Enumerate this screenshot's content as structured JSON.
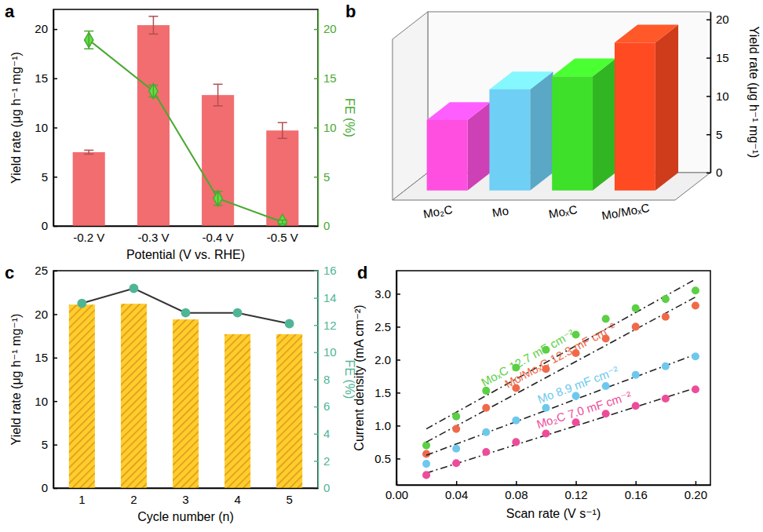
{
  "chart_data": [
    {
      "type": "bar",
      "title": "a",
      "categories": [
        "-0.2 V",
        "-0.3 V",
        "-0.4 V",
        "-0.5 V"
      ],
      "x_label": "Potential (V vs. RHE)",
      "y_label": "Yield rate (μg h⁻¹ mg⁻¹)",
      "y2_label": "FE (%)",
      "ylim": [
        0,
        22
      ],
      "yticks": [
        0,
        5,
        10,
        15,
        20
      ],
      "y2lim": [
        0,
        22
      ],
      "y2ticks": [
        0,
        5,
        10,
        15,
        20
      ],
      "series": [
        {
          "type": "bar",
          "color": "#f26d6f",
          "values": [
            7.5,
            20.4,
            13.3,
            9.7
          ],
          "errors": [
            0.2,
            0.9,
            1.1,
            0.8
          ]
        },
        {
          "type": "line",
          "axis": "y2",
          "color": "#4aa832",
          "marker": "diamond",
          "values": [
            18.9,
            13.7,
            2.8,
            0.4
          ],
          "errors": [
            0.9,
            0.6,
            0.7,
            0.2
          ]
        }
      ]
    },
    {
      "type": "bar",
      "title": "b",
      "categories": [
        "Mo₂C",
        "Mo",
        "MoₓC",
        "Mo/MoₓC"
      ],
      "y_label": "Yield rate (μg h⁻¹ mg⁻¹)",
      "ylim": [
        0,
        21
      ],
      "yticks": [
        0,
        5,
        10,
        15,
        20
      ],
      "colors": [
        "#ff4fe0",
        "#6fcff5",
        "#3ee02a",
        "#ff4a22"
      ],
      "values": [
        9.2,
        13.2,
        14.9,
        19.3
      ]
    },
    {
      "type": "bar",
      "title": "c",
      "categories": [
        "1",
        "2",
        "3",
        "4",
        "5"
      ],
      "x_label": "Cycle number (n)",
      "y_label": "Yield rate (μg h⁻¹ mg⁻¹)",
      "y2_label": "FE (%)",
      "ylim": [
        0,
        25
      ],
      "yticks": [
        0,
        5,
        10,
        15,
        20,
        25
      ],
      "y2lim": [
        0,
        16
      ],
      "y2ticks": [
        0,
        2,
        4,
        6,
        8,
        10,
        12,
        14,
        16
      ],
      "series": [
        {
          "type": "bar",
          "color": "#f5a623",
          "values": [
            21.1,
            21.2,
            19.4,
            17.7,
            17.7
          ]
        },
        {
          "type": "line",
          "axis": "y2",
          "color": "#4fb596",
          "marker": "circle",
          "values": [
            13.6,
            14.7,
            12.9,
            12.9,
            12.1
          ]
        }
      ]
    },
    {
      "type": "scatter",
      "title": "d",
      "x_label": "Scan rate (V s⁻¹)",
      "y_label": "Current density (mA cm⁻²)",
      "x": [
        0.02,
        0.04,
        0.06,
        0.08,
        0.1,
        0.12,
        0.14,
        0.16,
        0.18,
        0.2
      ],
      "xlim": [
        0,
        0.21
      ],
      "xticks": [
        {
          "value": 0,
          "label": "0.00"
        },
        0.04,
        0.08,
        0.12,
        0.16,
        {
          "value": 0.2,
          "label": "0.20"
        }
      ],
      "ylim": [
        0.1,
        3.35
      ],
      "yticks": [
        0.5,
        {
          "value": 1,
          "label": "1.0"
        },
        1.5,
        {
          "value": 2,
          "label": "2.0"
        },
        2.5,
        {
          "value": 3,
          "label": "3.0"
        }
      ],
      "series": [
        {
          "name": "MoₓC 12.7 mF cm⁻²",
          "color": "#5ccf45",
          "marker": "circle",
          "line_style": "dashdot",
          "values": [
            0.7,
            1.14,
            1.53,
            1.88,
            2.15,
            2.38,
            2.62,
            2.78,
            2.92,
            3.05
          ],
          "fit": [
            0.95,
            3.22
          ]
        },
        {
          "name": "Mo/MoₓC 12.3 mF cm⁻²",
          "color": "#f06a4a",
          "marker": "circle",
          "line_style": "dashdot",
          "values": [
            0.57,
            0.95,
            1.27,
            1.57,
            1.86,
            2.1,
            2.32,
            2.5,
            2.65,
            2.82
          ],
          "fit": [
            0.75,
            2.95
          ]
        },
        {
          "name": "Mo 8.9 mF cm⁻²",
          "color": "#6ec8ee",
          "marker": "circle",
          "line_style": "dashdot",
          "values": [
            0.42,
            0.65,
            0.9,
            1.08,
            1.27,
            1.45,
            1.6,
            1.77,
            1.9,
            2.05
          ],
          "fit": [
            0.55,
            2.08
          ]
        },
        {
          "name": "Mo₂C 7.0 mF cm⁻²",
          "color": "#ee4c9a",
          "marker": "circle",
          "line_style": "dashdot",
          "values": [
            0.25,
            0.43,
            0.6,
            0.75,
            0.88,
            1.05,
            1.18,
            1.3,
            1.41,
            1.55
          ],
          "fit": [
            0.28,
            1.57
          ]
        }
      ]
    }
  ]
}
